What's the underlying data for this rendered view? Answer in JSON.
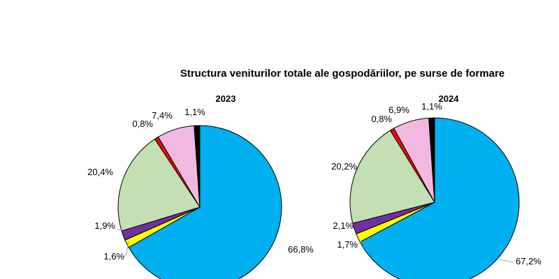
{
  "chart_data": {
    "type": "pie",
    "title": "Structura veniturilor totale ale gospodăriilor, pe surse de formare",
    "colors": [
      "#00b0f0",
      "#ffff00",
      "#7030a0",
      "#c4dfb4",
      "#ff0000",
      "#f1b9e0",
      "#000000"
    ],
    "charts": [
      {
        "title": "2023",
        "values": [
          66.8,
          1.6,
          1.9,
          20.4,
          0.8,
          7.4,
          1.1
        ],
        "labels": [
          "66,8%",
          "1,6%",
          "1,9%",
          "20,4%",
          "0,8%",
          "7,4%",
          "1,1%"
        ]
      },
      {
        "title": "2024",
        "values": [
          67.2,
          1.7,
          2.1,
          20.2,
          0.8,
          6.9,
          1.1
        ],
        "labels": [
          "67,2%",
          "1,7%",
          "2,1%",
          "20,2%",
          "0,8%",
          "6,9%",
          "1,1%"
        ]
      }
    ]
  }
}
